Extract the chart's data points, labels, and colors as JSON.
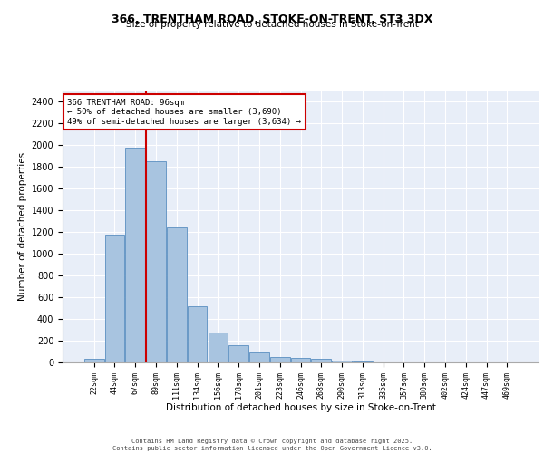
{
  "title1": "366, TRENTHAM ROAD, STOKE-ON-TRENT, ST3 3DX",
  "title2": "Size of property relative to detached houses in Stoke-on-Trent",
  "xlabel": "Distribution of detached houses by size in Stoke-on-Trent",
  "ylabel": "Number of detached properties",
  "categories": [
    "22sqm",
    "44sqm",
    "67sqm",
    "89sqm",
    "111sqm",
    "134sqm",
    "156sqm",
    "178sqm",
    "201sqm",
    "223sqm",
    "246sqm",
    "268sqm",
    "290sqm",
    "313sqm",
    "335sqm",
    "357sqm",
    "380sqm",
    "402sqm",
    "424sqm",
    "447sqm",
    "469sqm"
  ],
  "values": [
    30,
    1175,
    1975,
    1850,
    1240,
    515,
    275,
    155,
    90,
    50,
    42,
    35,
    20,
    8,
    0,
    0,
    0,
    0,
    0,
    0,
    0
  ],
  "bar_color": "#a8c4e0",
  "bar_edge_color": "#5a8fc0",
  "bg_color": "#e8eef8",
  "grid_color": "#ffffff",
  "vline_x": 3,
  "vline_color": "#cc0000",
  "annotation_text": "366 TRENTHAM ROAD: 96sqm\n← 50% of detached houses are smaller (3,690)\n49% of semi-detached houses are larger (3,634) →",
  "annotation_box_color": "#cc0000",
  "footer1": "Contains HM Land Registry data © Crown copyright and database right 2025.",
  "footer2": "Contains public sector information licensed under the Open Government Licence v3.0.",
  "ylim": [
    0,
    2500
  ],
  "yticks": [
    0,
    200,
    400,
    600,
    800,
    1000,
    1200,
    1400,
    1600,
    1800,
    2000,
    2200,
    2400
  ]
}
